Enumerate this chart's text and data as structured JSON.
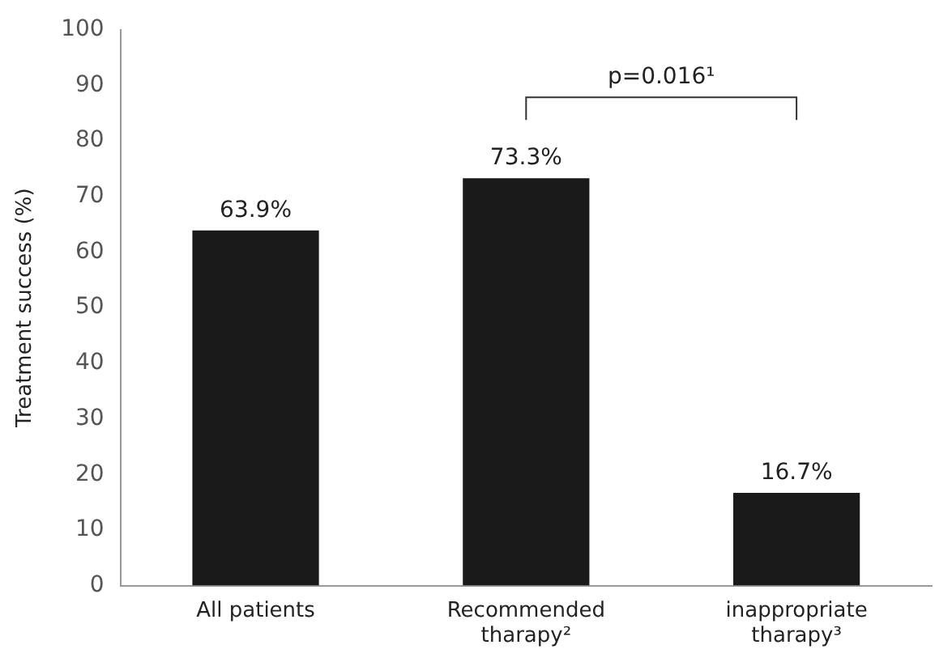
{
  "chart_data": {
    "type": "bar",
    "ylabel": "Treatment success (%)",
    "categories": [
      "All patients",
      "Recommended tharapy²",
      "inappropriate tharapy³"
    ],
    "values": [
      63.9,
      73.3,
      16.7
    ],
    "value_labels": [
      "63.9%",
      "73.3%",
      "16.7%"
    ],
    "color": "#1a1a1a",
    "ylim": [
      0,
      100
    ],
    "yticks": [
      0,
      10,
      20,
      30,
      40,
      50,
      60,
      70,
      80,
      90,
      100
    ],
    "grid": false,
    "legend": false,
    "annotations": [
      "p=0.016¹"
    ]
  }
}
